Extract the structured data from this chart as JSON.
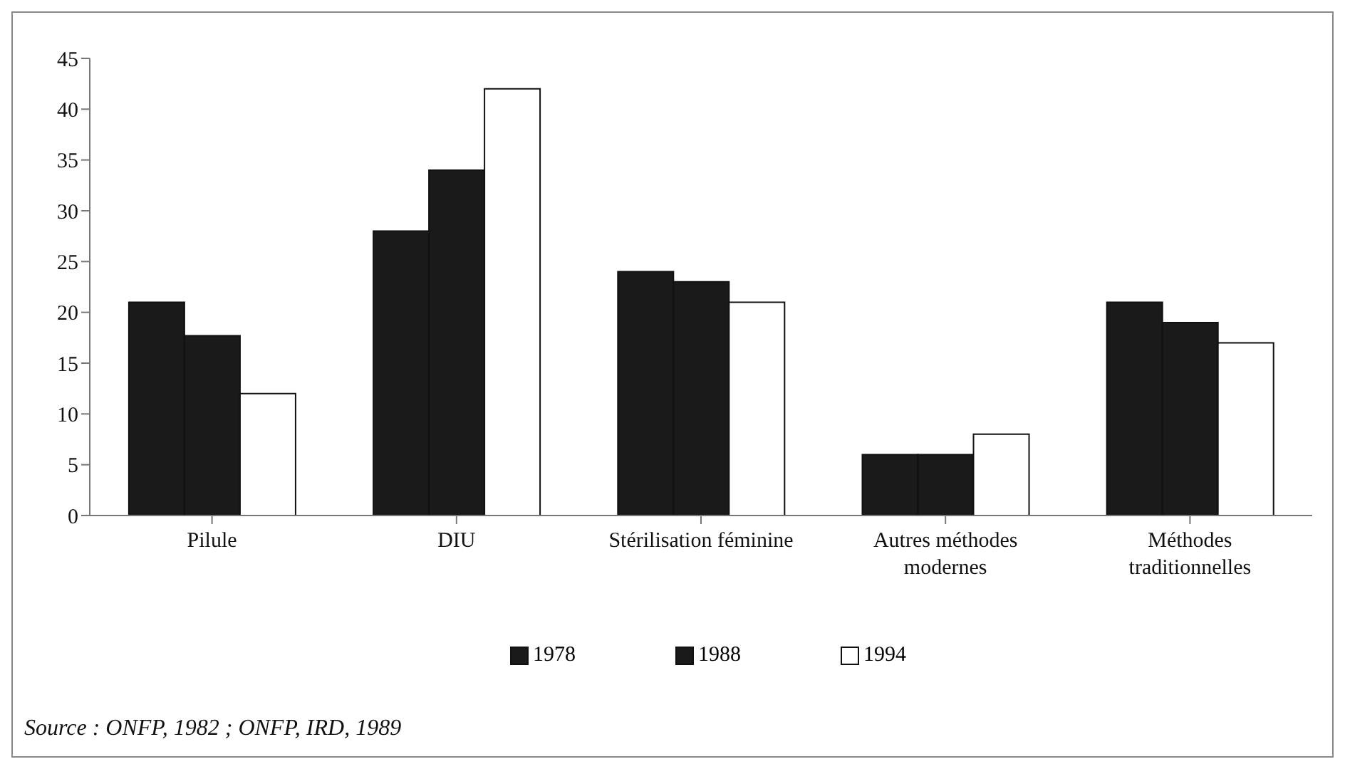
{
  "chart_data": {
    "type": "bar",
    "categories": [
      "Pilule",
      "DIU",
      "Stérilisation féminine",
      "Autres méthodes modernes",
      "Méthodes traditionnelles"
    ],
    "series": [
      {
        "name": "1978",
        "color": "#1a1a1a",
        "values": [
          21,
          28,
          24,
          6,
          21
        ]
      },
      {
        "name": "1988",
        "color": "#1a1a1a",
        "values": [
          17.7,
          34,
          23,
          6,
          19
        ]
      },
      {
        "name": "1994",
        "color": "#ffffff",
        "values": [
          12,
          42,
          21,
          8,
          17
        ]
      }
    ],
    "ylim": [
      0,
      45
    ],
    "yticks": [
      0,
      5,
      10,
      15,
      20,
      25,
      30,
      35,
      40,
      45
    ],
    "grid": false,
    "legend": "bottom",
    "annotations": [
      "Source : ONFP, 1982 ; ONFP, IRD, 1989"
    ]
  }
}
